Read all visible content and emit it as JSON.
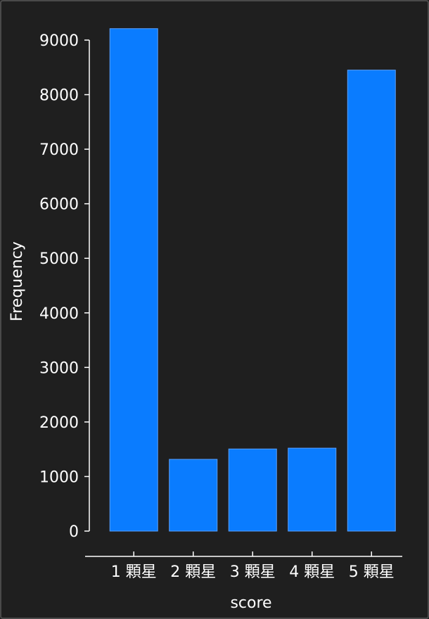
{
  "chart_data": {
    "type": "bar",
    "categories": [
      "1 顆星",
      "2 顆星",
      "3 顆星",
      "4 顆星",
      "5 顆星"
    ],
    "values": [
      9210,
      1315,
      1505,
      1520,
      8450
    ],
    "xlabel": "score",
    "ylabel": "Frequency",
    "ylim": [
      0,
      9000
    ],
    "yticks": [
      0,
      1000,
      2000,
      3000,
      4000,
      5000,
      6000,
      7000,
      8000,
      9000
    ],
    "grid": false,
    "bar_color": "#0a7cff",
    "background": "#1f1f1f",
    "text_color": "#ffffff"
  }
}
